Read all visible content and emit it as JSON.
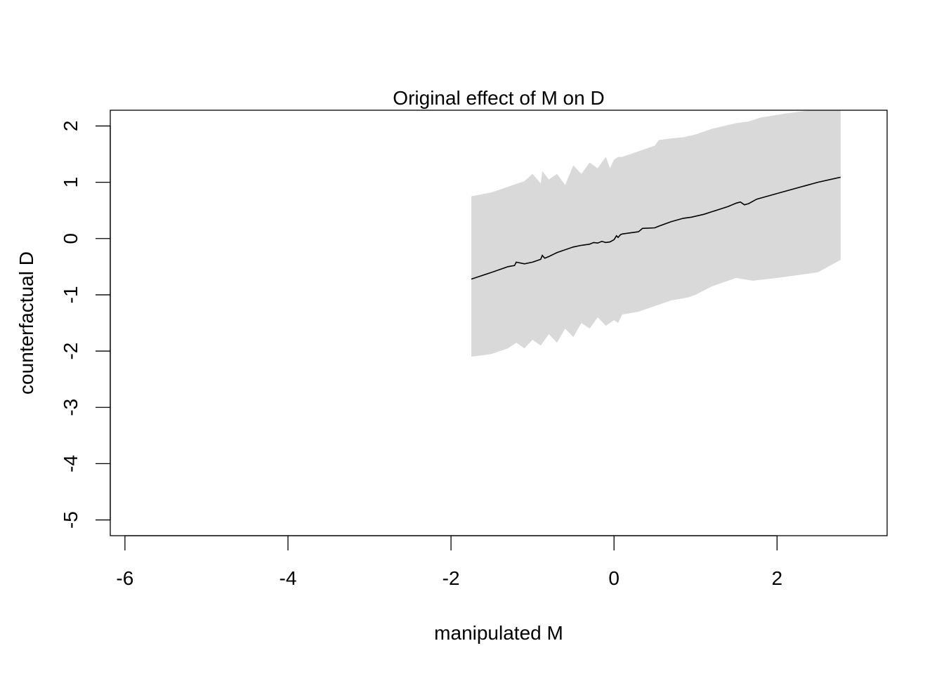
{
  "chart_data": {
    "type": "line",
    "title": "Original effect of M on D",
    "xlabel": "manipulated M",
    "ylabel": "counterfactual D",
    "xlim": [
      -6.18,
      3.35
    ],
    "ylim": [
      -5.28,
      2.28
    ],
    "xticks": [
      -6,
      -4,
      -2,
      0,
      2
    ],
    "yticks": [
      -5,
      -4,
      -3,
      -2,
      -1,
      0,
      1,
      2
    ],
    "xtick_labels": [
      "-6",
      "-4",
      "-2",
      "0",
      "2"
    ],
    "ytick_labels": [
      "-5",
      "-4",
      "-3",
      "-2",
      "-1",
      "0",
      "1",
      "2"
    ],
    "band_color": "#d9d9d9",
    "line_color": "#000000",
    "series": [
      {
        "x": [
          -1.75,
          -1.5,
          -1.3,
          -1.22,
          -1.2,
          -1.1,
          -1.0,
          -0.9,
          -0.88,
          -0.85,
          -0.8,
          -0.7,
          -0.6,
          -0.5,
          -0.4,
          -0.3,
          -0.25,
          -0.2,
          -0.15,
          -0.1,
          -0.05,
          0.0,
          0.03,
          0.05,
          0.08,
          0.1,
          0.3,
          0.35,
          0.5,
          0.55,
          0.7,
          0.85,
          0.95,
          1.1,
          1.25,
          1.4,
          1.5,
          1.55,
          1.6,
          1.65,
          1.75,
          2.0,
          2.5,
          2.78
        ],
        "y": [
          -0.72,
          -0.6,
          -0.5,
          -0.48,
          -0.42,
          -0.45,
          -0.42,
          -0.37,
          -0.3,
          -0.35,
          -0.32,
          -0.25,
          -0.2,
          -0.15,
          -0.12,
          -0.1,
          -0.07,
          -0.08,
          -0.05,
          -0.07,
          -0.06,
          -0.02,
          0.05,
          0.02,
          0.07,
          0.08,
          0.12,
          0.18,
          0.19,
          0.22,
          0.3,
          0.36,
          0.38,
          0.43,
          0.5,
          0.57,
          0.63,
          0.65,
          0.6,
          0.62,
          0.7,
          0.8,
          1.0,
          1.09
        ]
      }
    ],
    "band_upper": {
      "x": [
        -1.75,
        -1.5,
        -1.3,
        -1.1,
        -1.0,
        -0.9,
        -0.88,
        -0.8,
        -0.7,
        -0.6,
        -0.5,
        -0.4,
        -0.3,
        -0.2,
        -0.1,
        -0.05,
        0.0,
        0.05,
        0.1,
        0.3,
        0.4,
        0.5,
        0.55,
        0.7,
        0.85,
        1.0,
        1.2,
        1.5,
        1.65,
        1.8,
        2.1,
        2.5,
        2.78
      ],
      "y": [
        0.75,
        0.82,
        0.92,
        1.02,
        1.15,
        0.98,
        1.2,
        1.05,
        1.15,
        0.95,
        1.3,
        1.15,
        1.35,
        1.25,
        1.45,
        1.25,
        1.4,
        1.45,
        1.45,
        1.55,
        1.6,
        1.65,
        1.75,
        1.78,
        1.8,
        1.85,
        1.95,
        2.05,
        2.08,
        2.15,
        2.22,
        2.3,
        2.3
      ]
    },
    "band_lower": {
      "x": [
        -1.75,
        -1.5,
        -1.3,
        -1.2,
        -1.1,
        -1.0,
        -0.9,
        -0.8,
        -0.7,
        -0.6,
        -0.5,
        -0.4,
        -0.3,
        -0.2,
        -0.1,
        0.0,
        0.05,
        0.1,
        0.3,
        0.5,
        0.7,
        0.9,
        1.0,
        1.2,
        1.5,
        1.7,
        2.0,
        2.5,
        2.78
      ],
      "y": [
        -2.1,
        -2.05,
        -1.95,
        -1.85,
        -1.95,
        -1.8,
        -1.9,
        -1.7,
        -1.85,
        -1.6,
        -1.75,
        -1.5,
        -1.6,
        -1.4,
        -1.55,
        -1.45,
        -1.5,
        -1.35,
        -1.3,
        -1.2,
        -1.1,
        -1.05,
        -1.0,
        -0.85,
        -0.7,
        -0.75,
        -0.7,
        -0.6,
        -0.38
      ]
    }
  }
}
